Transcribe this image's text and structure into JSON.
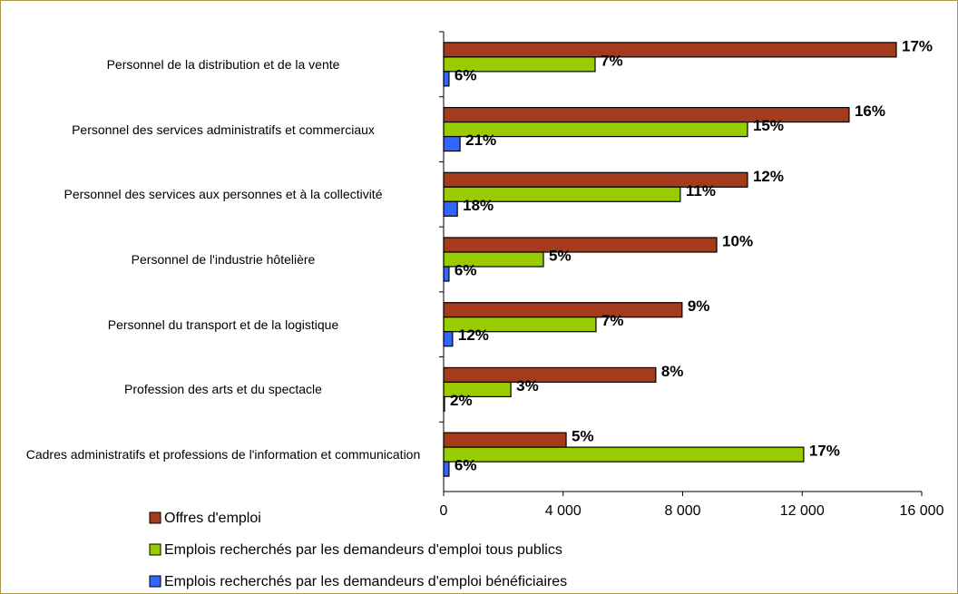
{
  "chart_data": {
    "type": "hbar",
    "categories": [
      "Personnel de la distribution et de la vente",
      "Personnel des services administratifs et commerciaux",
      "Personnel des services aux personnes et à la collectivité",
      "Personnel de l'industrie hôtelière",
      "Personnel du transport et de la logistique",
      "Profession des arts et du spectacle",
      "Cadres administratifs et professions de l'information et communication"
    ],
    "series": [
      {
        "name": "Offres d'emploi",
        "color": "#a33b1c",
        "values": [
          15150,
          13570,
          10170,
          9140,
          7980,
          7100,
          4100
        ],
        "value_labels": [
          "17%",
          "16%",
          "12%",
          "10%",
          "9%",
          "8%",
          "5%"
        ]
      },
      {
        "name": "Emplois recherchés par les demandeurs d'emploi tous publics",
        "color": "#99cc00",
        "values": [
          5070,
          10170,
          7920,
          3340,
          5100,
          2250,
          12050
        ],
        "value_labels": [
          "7%",
          "15%",
          "11%",
          "5%",
          "7%",
          "3%",
          "17%"
        ]
      },
      {
        "name": "Emplois recherchés par les demandeurs d'emploi bénéficiaires",
        "color": "#3366ff",
        "values": [
          180,
          550,
          460,
          180,
          300,
          30,
          180
        ],
        "value_labels": [
          "6%",
          "21%",
          "18%",
          "6%",
          "12%",
          "2%",
          "6%"
        ]
      }
    ],
    "xlim": [
      0,
      16000
    ],
    "xticks": [
      0,
      {
        "value": 4000,
        "label": "4 000"
      },
      {
        "value": 8000,
        "label": "8 000"
      },
      {
        "value": 12000,
        "label": "12 000"
      },
      {
        "value": 16000,
        "label": "16 000"
      }
    ],
    "legend": "bottom-left"
  }
}
